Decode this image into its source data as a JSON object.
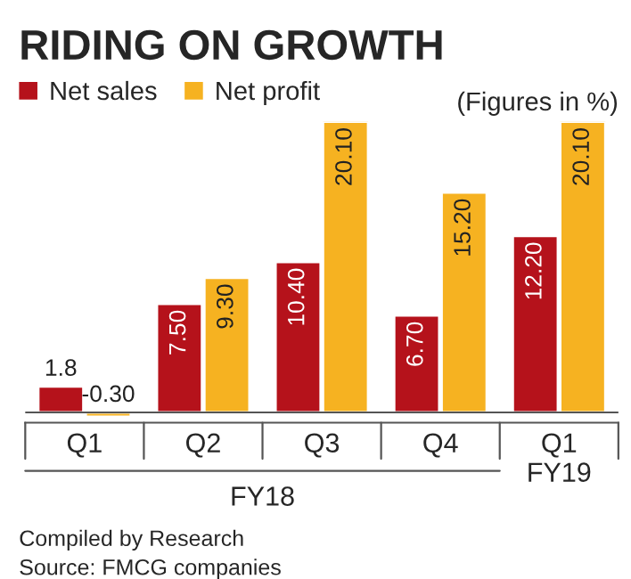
{
  "chart_data": {
    "type": "bar",
    "title": "RIDING ON GROWTH",
    "categories": [
      "Q1",
      "Q2",
      "Q3",
      "Q4",
      "Q1\nFY19"
    ],
    "series": [
      {
        "name": "Net sales",
        "color": "#b5121b",
        "values": [
          1.8,
          7.5,
          10.4,
          6.7,
          12.2
        ],
        "value_labels": [
          "1.8",
          "7.50",
          "10.40",
          "6.70",
          "12.20"
        ]
      },
      {
        "name": "Net profit",
        "color": "#f6b221",
        "values": [
          -0.3,
          9.3,
          20.1,
          15.2,
          20.1
        ],
        "value_labels": [
          "-0.30",
          "9.30",
          "20.10",
          "15.20",
          "20.10"
        ]
      }
    ],
    "annotations": [
      "(Figures in %)",
      "FY18",
      "Compiled by Research",
      "Source: FMCG companies"
    ],
    "legend": "top",
    "grid": false
  }
}
